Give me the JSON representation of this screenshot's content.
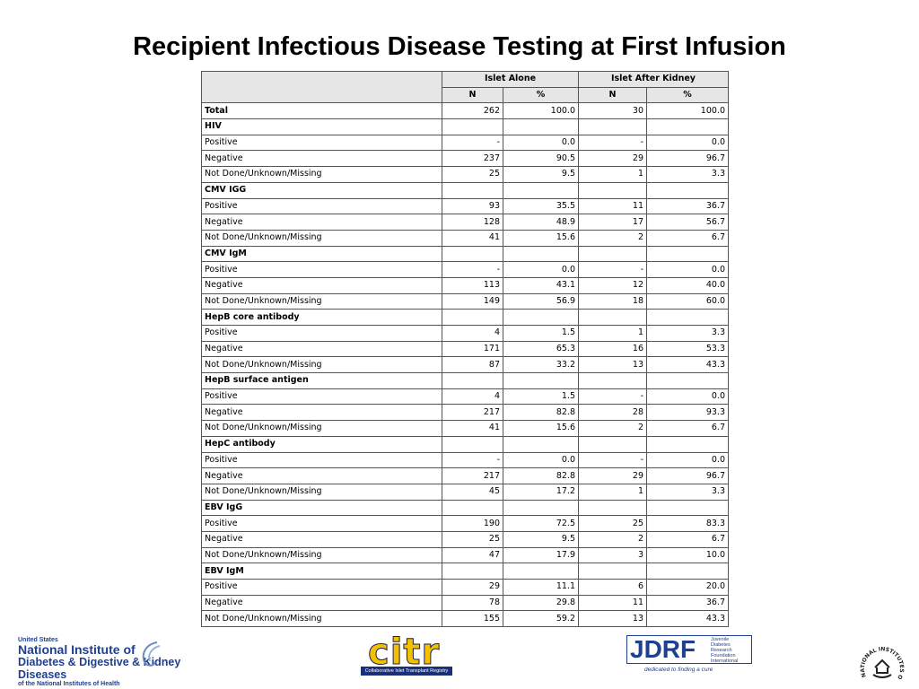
{
  "title": "Recipient Infectious Disease Testing at First Infusion",
  "table": {
    "groups": [
      "Islet Alone",
      "Islet After Kidney"
    ],
    "subheaders": [
      "N",
      "%",
      "N",
      "%"
    ],
    "total": {
      "label": "Total",
      "values": [
        "262",
        "100.0",
        "30",
        "100.0"
      ]
    },
    "sections": [
      {
        "name": "HIV",
        "rows": [
          {
            "label": "Positive",
            "values": [
              "-",
              "0.0",
              "-",
              "0.0"
            ]
          },
          {
            "label": "Negative",
            "values": [
              "237",
              "90.5",
              "29",
              "96.7"
            ]
          },
          {
            "label": "Not Done/Unknown/Missing",
            "values": [
              "25",
              "9.5",
              "1",
              "3.3"
            ]
          }
        ]
      },
      {
        "name": "CMV IGG",
        "rows": [
          {
            "label": "Positive",
            "values": [
              "93",
              "35.5",
              "11",
              "36.7"
            ]
          },
          {
            "label": "Negative",
            "values": [
              "128",
              "48.9",
              "17",
              "56.7"
            ]
          },
          {
            "label": "Not Done/Unknown/Missing",
            "values": [
              "41",
              "15.6",
              "2",
              "6.7"
            ]
          }
        ]
      },
      {
        "name": "CMV IgM",
        "rows": [
          {
            "label": "Positive",
            "values": [
              "-",
              "0.0",
              "-",
              "0.0"
            ]
          },
          {
            "label": "Negative",
            "values": [
              "113",
              "43.1",
              "12",
              "40.0"
            ]
          },
          {
            "label": "Not Done/Unknown/Missing",
            "values": [
              "149",
              "56.9",
              "18",
              "60.0"
            ]
          }
        ]
      },
      {
        "name": "HepB core antibody",
        "rows": [
          {
            "label": "Positive",
            "values": [
              "4",
              "1.5",
              "1",
              "3.3"
            ]
          },
          {
            "label": "Negative",
            "values": [
              "171",
              "65.3",
              "16",
              "53.3"
            ]
          },
          {
            "label": "Not Done/Unknown/Missing",
            "values": [
              "87",
              "33.2",
              "13",
              "43.3"
            ]
          }
        ]
      },
      {
        "name": "HepB surface antigen",
        "rows": [
          {
            "label": "Positive",
            "values": [
              "4",
              "1.5",
              "-",
              "0.0"
            ]
          },
          {
            "label": "Negative",
            "values": [
              "217",
              "82.8",
              "28",
              "93.3"
            ]
          },
          {
            "label": "Not Done/Unknown/Missing",
            "values": [
              "41",
              "15.6",
              "2",
              "6.7"
            ]
          }
        ]
      },
      {
        "name": "HepC antibody",
        "rows": [
          {
            "label": "Positive",
            "values": [
              "-",
              "0.0",
              "-",
              "0.0"
            ]
          },
          {
            "label": "Negative",
            "values": [
              "217",
              "82.8",
              "29",
              "96.7"
            ]
          },
          {
            "label": "Not Done/Unknown/Missing",
            "values": [
              "45",
              "17.2",
              "1",
              "3.3"
            ]
          }
        ]
      },
      {
        "name": "EBV IgG",
        "rows": [
          {
            "label": "Positive",
            "values": [
              "190",
              "72.5",
              "25",
              "83.3"
            ]
          },
          {
            "label": "Negative",
            "values": [
              "25",
              "9.5",
              "2",
              "6.7"
            ]
          },
          {
            "label": "Not Done/Unknown/Missing",
            "values": [
              "47",
              "17.9",
              "3",
              "10.0"
            ]
          }
        ]
      },
      {
        "name": "EBV IgM",
        "rows": [
          {
            "label": "Positive",
            "values": [
              "29",
              "11.1",
              "6",
              "20.0"
            ]
          },
          {
            "label": "Negative",
            "values": [
              "78",
              "29.8",
              "11",
              "36.7"
            ]
          },
          {
            "label": "Not Done/Unknown/Missing",
            "values": [
              "155",
              "59.2",
              "13",
              "43.3"
            ]
          }
        ]
      }
    ]
  },
  "logos": {
    "nih": {
      "line0": "United States",
      "line1": "National Institute of",
      "line2": "Diabetes & Digestive & Kidney Diseases",
      "line3": "of the National Institutes of Health",
      "color": "#1f3f8f"
    },
    "citr": {
      "word": "citr",
      "subtitle": "Collaborative Islet Transplant Registry",
      "color": "#f2c200"
    },
    "jdrf": {
      "word": "JDRF",
      "side": [
        "Juvenile",
        "Diabetes",
        "Research",
        "Foundation",
        "International"
      ],
      "tagline": "dedicated to finding a cure",
      "color": "#1f3f8f"
    },
    "nih_seal": {
      "text": "NATIONAL INSTITUTES OF HEALTH"
    }
  }
}
